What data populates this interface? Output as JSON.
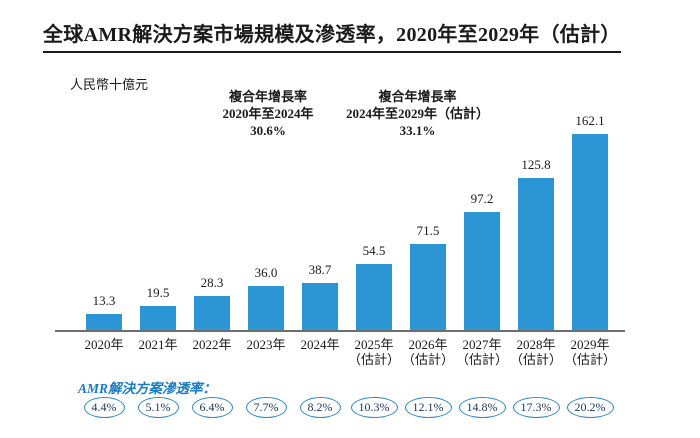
{
  "colors": {
    "bar": "#2B96D3",
    "oval_border": "#2E86C1",
    "oval_text": "#17375E",
    "penetration_label": "#1C7CC0",
    "axis": "#6e6e6e",
    "text": "#1a1a1a"
  },
  "chart_data": {
    "type": "bar",
    "title": "全球AMR解決方案市場規模及滲透率，2020年至2029年（估計）",
    "unit_label": "人民幣十億元",
    "xlabel": "",
    "ylabel": "人民幣十億元",
    "ylim": [
      0,
      170
    ],
    "grid": false,
    "legend_position": "none",
    "categories": [
      {
        "label": "2020年",
        "note": ""
      },
      {
        "label": "2021年",
        "note": ""
      },
      {
        "label": "2022年",
        "note": ""
      },
      {
        "label": "2023年",
        "note": ""
      },
      {
        "label": "2024年",
        "note": ""
      },
      {
        "label": "2025年",
        "note": "（估計）"
      },
      {
        "label": "2026年",
        "note": "（估計）"
      },
      {
        "label": "2027年",
        "note": "（估計）"
      },
      {
        "label": "2028年",
        "note": "（估計）"
      },
      {
        "label": "2029年",
        "note": "（估計）"
      }
    ],
    "values": [
      13.3,
      19.5,
      28.3,
      36.0,
      38.7,
      54.5,
      71.5,
      97.2,
      125.8,
      162.1
    ],
    "value_labels": [
      "13.3",
      "19.5",
      "28.3",
      "36.0",
      "38.7",
      "54.5",
      "71.5",
      "97.2",
      "125.8",
      "162.1"
    ],
    "annotations": [
      {
        "title": "複合年增長率",
        "period": "2020年至2024年",
        "value": "30.6%"
      },
      {
        "title": "複合年增長率",
        "period": "2024年至2029年（估計）",
        "value": "33.1%"
      }
    ],
    "penetration_series": {
      "label": "AMR解決方案滲透率：",
      "values": [
        "4.4%",
        "5.1%",
        "6.4%",
        "7.7%",
        "8.2%",
        "10.3%",
        "12.1%",
        "14.8%",
        "17.3%",
        "20.2%"
      ]
    }
  }
}
